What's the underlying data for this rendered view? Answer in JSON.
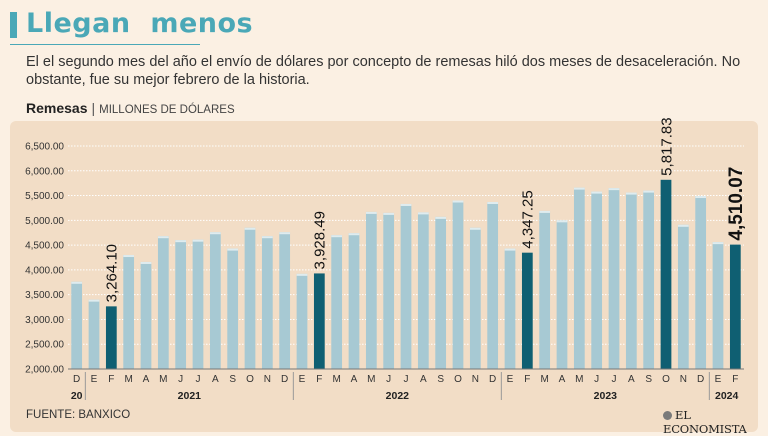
{
  "header": {
    "title": "Llegan  menos",
    "subtitle": "El el segundo mes del año el envío de dólares por concepto de remesas hiló dos meses de desaceleración. No obstante, fue su mejor febrero de la historia.",
    "chart_label": "Remesas",
    "separator": "|",
    "chart_unit": "MILLONES DE DÓLARES"
  },
  "footer": {
    "source": "FUENTE: BANXICO",
    "brand": "EL ECONOMISTA"
  },
  "colors": {
    "title": "#4aa8b7",
    "bar_normal": "#a7c9d3",
    "bar_highlight": "#0f5f72",
    "panel": "#f2ddc6",
    "background": "#fbf0e3"
  },
  "chart_data": {
    "type": "bar",
    "title": "Remesas",
    "ylabel": "MILLONES DE DÓLARES",
    "ylim": [
      2000,
      6500
    ],
    "yticks": [
      "2,000.00",
      "2,500.00",
      "3,000.00",
      "3,500.00",
      "4,000.00",
      "4,500.00",
      "5,000.00",
      "5,500.00",
      "6,000.00",
      "6,500.00"
    ],
    "grid": true,
    "categories": [
      "D",
      "E",
      "F",
      "M",
      "A",
      "M",
      "J",
      "J",
      "A",
      "S",
      "O",
      "N",
      "D",
      "E",
      "F",
      "M",
      "A",
      "M",
      "J",
      "J",
      "A",
      "S",
      "O",
      "N",
      "D",
      "E",
      "F",
      "M",
      "A",
      "M",
      "J",
      "J",
      "A",
      "S",
      "O",
      "N",
      "D",
      "E",
      "F"
    ],
    "year_groups": [
      {
        "label": "20",
        "start": 0,
        "end": 0
      },
      {
        "label": "2021",
        "start": 1,
        "end": 12
      },
      {
        "label": "2022",
        "start": 13,
        "end": 24
      },
      {
        "label": "2023",
        "start": 25,
        "end": 36
      },
      {
        "label": "2024",
        "start": 37,
        "end": 38
      }
    ],
    "values": [
      3760,
      3400,
      3264.1,
      4300,
      4160,
      4680,
      4600,
      4610,
      4760,
      4430,
      4850,
      4680,
      4760,
      3920,
      3928.49,
      4700,
      4740,
      5170,
      5150,
      5330,
      5160,
      5070,
      5400,
      4850,
      5370,
      4430,
      4347.25,
      5190,
      5000,
      5660,
      5580,
      5650,
      5560,
      5600,
      5817.83,
      4910,
      5490,
      4560,
      4510.07
    ],
    "highlight_indices": [
      2,
      14,
      26,
      34,
      38
    ],
    "data_labels": [
      {
        "index": 2,
        "text": "3,264.10"
      },
      {
        "index": 14,
        "text": "3,928.49"
      },
      {
        "index": 26,
        "text": "4,347.25"
      },
      {
        "index": 34,
        "text": "5,817.83"
      },
      {
        "index": 38,
        "text": "4,510.07",
        "bold": true
      }
    ]
  }
}
